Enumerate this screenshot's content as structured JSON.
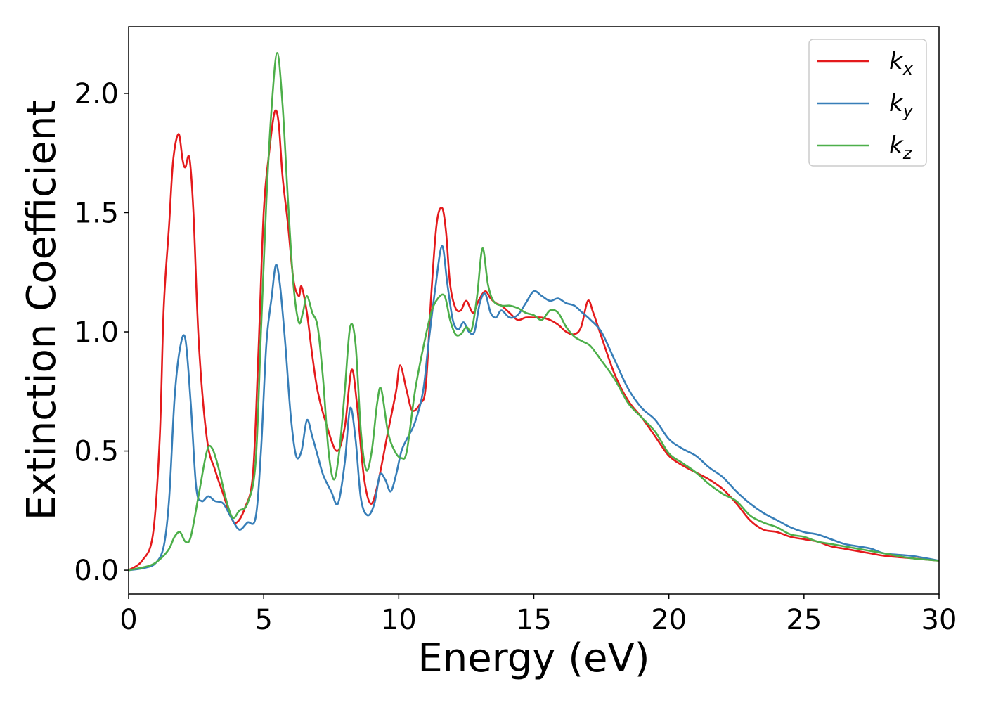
{
  "chart_data": {
    "type": "line",
    "title": "",
    "xlabel": "Energy (eV)",
    "ylabel": "Extinction Coefficient",
    "xlim": [
      0,
      30
    ],
    "ylim": [
      -0.1,
      2.28
    ],
    "xticks": [
      0,
      5,
      10,
      15,
      20,
      25,
      30
    ],
    "yticks": [
      0.0,
      0.5,
      1.0,
      1.5,
      2.0
    ],
    "xtick_labels": [
      "0",
      "5",
      "10",
      "15",
      "20",
      "25",
      "30"
    ],
    "ytick_labels": [
      "0.0",
      "0.5",
      "1.0",
      "1.5",
      "2.0"
    ],
    "grid": false,
    "legend_position": "top-right",
    "series": [
      {
        "name": "k_x",
        "legend_base": "k",
        "legend_sub": "x",
        "color": "#e41a1c",
        "points": [
          [
            0,
            0
          ],
          [
            0.5,
            0.04
          ],
          [
            0.9,
            0.15
          ],
          [
            1.15,
            0.55
          ],
          [
            1.3,
            1.1
          ],
          [
            1.5,
            1.45
          ],
          [
            1.65,
            1.72
          ],
          [
            1.85,
            1.83
          ],
          [
            2.0,
            1.72
          ],
          [
            2.1,
            1.69
          ],
          [
            2.25,
            1.73
          ],
          [
            2.4,
            1.5
          ],
          [
            2.6,
            0.95
          ],
          [
            2.9,
            0.55
          ],
          [
            3.2,
            0.42
          ],
          [
            3.5,
            0.32
          ],
          [
            3.8,
            0.22
          ],
          [
            4.0,
            0.2
          ],
          [
            4.3,
            0.26
          ],
          [
            4.6,
            0.4
          ],
          [
            4.8,
            0.9
          ],
          [
            5.0,
            1.5
          ],
          [
            5.2,
            1.75
          ],
          [
            5.4,
            1.92
          ],
          [
            5.55,
            1.88
          ],
          [
            5.7,
            1.65
          ],
          [
            5.9,
            1.45
          ],
          [
            6.1,
            1.22
          ],
          [
            6.3,
            1.15
          ],
          [
            6.4,
            1.19
          ],
          [
            6.6,
            1.08
          ],
          [
            6.8,
            0.9
          ],
          [
            7.0,
            0.75
          ],
          [
            7.3,
            0.62
          ],
          [
            7.7,
            0.5
          ],
          [
            8.0,
            0.6
          ],
          [
            8.25,
            0.84
          ],
          [
            8.45,
            0.7
          ],
          [
            8.7,
            0.4
          ],
          [
            8.95,
            0.28
          ],
          [
            9.2,
            0.35
          ],
          [
            9.6,
            0.58
          ],
          [
            9.9,
            0.75
          ],
          [
            10.05,
            0.86
          ],
          [
            10.3,
            0.75
          ],
          [
            10.5,
            0.67
          ],
          [
            10.8,
            0.7
          ],
          [
            11.0,
            0.77
          ],
          [
            11.2,
            1.15
          ],
          [
            11.4,
            1.45
          ],
          [
            11.6,
            1.52
          ],
          [
            11.75,
            1.42
          ],
          [
            11.9,
            1.2
          ],
          [
            12.1,
            1.1
          ],
          [
            12.3,
            1.09
          ],
          [
            12.5,
            1.13
          ],
          [
            12.75,
            1.08
          ],
          [
            12.95,
            1.13
          ],
          [
            13.2,
            1.17
          ],
          [
            13.4,
            1.14
          ],
          [
            13.6,
            1.12
          ],
          [
            13.8,
            1.11
          ],
          [
            14.1,
            1.08
          ],
          [
            14.4,
            1.05
          ],
          [
            14.7,
            1.06
          ],
          [
            15.0,
            1.06
          ],
          [
            15.3,
            1.06
          ],
          [
            15.6,
            1.05
          ],
          [
            15.9,
            1.03
          ],
          [
            16.2,
            1.0
          ],
          [
            16.5,
            0.99
          ],
          [
            16.75,
            1.02
          ],
          [
            17.0,
            1.13
          ],
          [
            17.2,
            1.08
          ],
          [
            17.5,
            0.98
          ],
          [
            18.0,
            0.82
          ],
          [
            18.5,
            0.71
          ],
          [
            19.0,
            0.64
          ],
          [
            19.5,
            0.56
          ],
          [
            20.0,
            0.48
          ],
          [
            20.5,
            0.44
          ],
          [
            21.0,
            0.41
          ],
          [
            21.5,
            0.38
          ],
          [
            22.0,
            0.34
          ],
          [
            22.5,
            0.28
          ],
          [
            23.0,
            0.21
          ],
          [
            23.5,
            0.17
          ],
          [
            24.0,
            0.16
          ],
          [
            24.5,
            0.14
          ],
          [
            25.0,
            0.13
          ],
          [
            25.5,
            0.12
          ],
          [
            26.0,
            0.1
          ],
          [
            26.5,
            0.09
          ],
          [
            27.0,
            0.08
          ],
          [
            27.5,
            0.07
          ],
          [
            28.0,
            0.06
          ],
          [
            29.0,
            0.05
          ],
          [
            30.0,
            0.04
          ]
        ]
      },
      {
        "name": "k_y",
        "legend_base": "k",
        "legend_sub": "y",
        "color": "#377eb8",
        "points": [
          [
            0,
            0
          ],
          [
            0.6,
            0.01
          ],
          [
            1.0,
            0.03
          ],
          [
            1.3,
            0.1
          ],
          [
            1.5,
            0.3
          ],
          [
            1.7,
            0.72
          ],
          [
            1.9,
            0.93
          ],
          [
            2.1,
            0.97
          ],
          [
            2.3,
            0.7
          ],
          [
            2.5,
            0.35
          ],
          [
            2.7,
            0.29
          ],
          [
            2.95,
            0.31
          ],
          [
            3.2,
            0.29
          ],
          [
            3.5,
            0.28
          ],
          [
            3.8,
            0.22
          ],
          [
            4.1,
            0.17
          ],
          [
            4.4,
            0.2
          ],
          [
            4.7,
            0.22
          ],
          [
            4.9,
            0.5
          ],
          [
            5.1,
            0.95
          ],
          [
            5.3,
            1.15
          ],
          [
            5.45,
            1.28
          ],
          [
            5.6,
            1.2
          ],
          [
            5.8,
            0.95
          ],
          [
            6.0,
            0.65
          ],
          [
            6.2,
            0.48
          ],
          [
            6.4,
            0.5
          ],
          [
            6.6,
            0.63
          ],
          [
            6.8,
            0.56
          ],
          [
            7.0,
            0.48
          ],
          [
            7.2,
            0.4
          ],
          [
            7.5,
            0.33
          ],
          [
            7.75,
            0.28
          ],
          [
            8.0,
            0.45
          ],
          [
            8.2,
            0.68
          ],
          [
            8.4,
            0.55
          ],
          [
            8.6,
            0.3
          ],
          [
            8.85,
            0.23
          ],
          [
            9.1,
            0.28
          ],
          [
            9.3,
            0.4
          ],
          [
            9.5,
            0.38
          ],
          [
            9.7,
            0.33
          ],
          [
            9.9,
            0.4
          ],
          [
            10.1,
            0.5
          ],
          [
            10.3,
            0.55
          ],
          [
            10.6,
            0.62
          ],
          [
            10.9,
            0.75
          ],
          [
            11.1,
            0.95
          ],
          [
            11.35,
            1.18
          ],
          [
            11.6,
            1.36
          ],
          [
            11.8,
            1.2
          ],
          [
            12.0,
            1.05
          ],
          [
            12.2,
            1.01
          ],
          [
            12.4,
            1.04
          ],
          [
            12.6,
            1.0
          ],
          [
            12.8,
            1.0
          ],
          [
            13.0,
            1.12
          ],
          [
            13.2,
            1.16
          ],
          [
            13.4,
            1.08
          ],
          [
            13.6,
            1.06
          ],
          [
            13.8,
            1.09
          ],
          [
            14.1,
            1.06
          ],
          [
            14.4,
            1.07
          ],
          [
            14.7,
            1.12
          ],
          [
            15.0,
            1.17
          ],
          [
            15.3,
            1.15
          ],
          [
            15.6,
            1.13
          ],
          [
            15.9,
            1.14
          ],
          [
            16.2,
            1.12
          ],
          [
            16.5,
            1.11
          ],
          [
            16.8,
            1.08
          ],
          [
            17.1,
            1.05
          ],
          [
            17.5,
            1.0
          ],
          [
            18.0,
            0.88
          ],
          [
            18.5,
            0.76
          ],
          [
            19.0,
            0.68
          ],
          [
            19.5,
            0.63
          ],
          [
            20.0,
            0.55
          ],
          [
            20.5,
            0.51
          ],
          [
            21.0,
            0.48
          ],
          [
            21.5,
            0.43
          ],
          [
            22.0,
            0.39
          ],
          [
            22.5,
            0.33
          ],
          [
            23.0,
            0.28
          ],
          [
            23.5,
            0.24
          ],
          [
            24.0,
            0.21
          ],
          [
            24.5,
            0.18
          ],
          [
            25.0,
            0.16
          ],
          [
            25.5,
            0.15
          ],
          [
            26.0,
            0.13
          ],
          [
            26.5,
            0.11
          ],
          [
            27.0,
            0.1
          ],
          [
            27.5,
            0.09
          ],
          [
            28.0,
            0.07
          ],
          [
            29.0,
            0.06
          ],
          [
            30.0,
            0.04
          ]
        ]
      },
      {
        "name": "k_z",
        "legend_base": "k",
        "legend_sub": "z",
        "color": "#4daf4a",
        "points": [
          [
            0,
            0
          ],
          [
            0.8,
            0.02
          ],
          [
            1.2,
            0.05
          ],
          [
            1.5,
            0.09
          ],
          [
            1.7,
            0.14
          ],
          [
            1.9,
            0.16
          ],
          [
            2.1,
            0.12
          ],
          [
            2.3,
            0.14
          ],
          [
            2.6,
            0.32
          ],
          [
            2.9,
            0.5
          ],
          [
            3.1,
            0.51
          ],
          [
            3.35,
            0.42
          ],
          [
            3.6,
            0.3
          ],
          [
            3.85,
            0.22
          ],
          [
            4.1,
            0.25
          ],
          [
            4.4,
            0.28
          ],
          [
            4.7,
            0.45
          ],
          [
            4.9,
            1.0
          ],
          [
            5.1,
            1.55
          ],
          [
            5.3,
            1.95
          ],
          [
            5.5,
            2.17
          ],
          [
            5.7,
            1.95
          ],
          [
            5.9,
            1.55
          ],
          [
            6.1,
            1.2
          ],
          [
            6.3,
            1.04
          ],
          [
            6.45,
            1.08
          ],
          [
            6.6,
            1.15
          ],
          [
            6.8,
            1.08
          ],
          [
            7.0,
            1.02
          ],
          [
            7.2,
            0.8
          ],
          [
            7.4,
            0.5
          ],
          [
            7.6,
            0.38
          ],
          [
            7.8,
            0.5
          ],
          [
            8.0,
            0.75
          ],
          [
            8.2,
            1.02
          ],
          [
            8.4,
            0.95
          ],
          [
            8.6,
            0.58
          ],
          [
            8.8,
            0.42
          ],
          [
            9.0,
            0.5
          ],
          [
            9.2,
            0.7
          ],
          [
            9.35,
            0.76
          ],
          [
            9.6,
            0.58
          ],
          [
            9.85,
            0.5
          ],
          [
            10.1,
            0.47
          ],
          [
            10.3,
            0.5
          ],
          [
            10.6,
            0.75
          ],
          [
            10.9,
            0.93
          ],
          [
            11.2,
            1.08
          ],
          [
            11.45,
            1.14
          ],
          [
            11.7,
            1.15
          ],
          [
            11.9,
            1.05
          ],
          [
            12.1,
            0.99
          ],
          [
            12.3,
            0.99
          ],
          [
            12.5,
            1.02
          ],
          [
            12.7,
            1.01
          ],
          [
            12.9,
            1.15
          ],
          [
            13.1,
            1.35
          ],
          [
            13.3,
            1.2
          ],
          [
            13.5,
            1.13
          ],
          [
            13.8,
            1.11
          ],
          [
            14.1,
            1.11
          ],
          [
            14.4,
            1.1
          ],
          [
            14.7,
            1.08
          ],
          [
            15.0,
            1.07
          ],
          [
            15.3,
            1.05
          ],
          [
            15.6,
            1.09
          ],
          [
            15.9,
            1.08
          ],
          [
            16.2,
            1.02
          ],
          [
            16.5,
            0.98
          ],
          [
            16.8,
            0.96
          ],
          [
            17.1,
            0.94
          ],
          [
            17.5,
            0.88
          ],
          [
            18.0,
            0.8
          ],
          [
            18.5,
            0.7
          ],
          [
            19.0,
            0.64
          ],
          [
            19.5,
            0.58
          ],
          [
            20.0,
            0.49
          ],
          [
            20.5,
            0.45
          ],
          [
            21.0,
            0.41
          ],
          [
            21.5,
            0.36
          ],
          [
            22.0,
            0.32
          ],
          [
            22.5,
            0.29
          ],
          [
            23.0,
            0.23
          ],
          [
            23.5,
            0.2
          ],
          [
            24.0,
            0.18
          ],
          [
            24.5,
            0.15
          ],
          [
            25.0,
            0.14
          ],
          [
            25.5,
            0.12
          ],
          [
            26.0,
            0.11
          ],
          [
            26.5,
            0.1
          ],
          [
            27.0,
            0.09
          ],
          [
            27.5,
            0.08
          ],
          [
            28.0,
            0.07
          ],
          [
            29.0,
            0.05
          ],
          [
            30.0,
            0.04
          ]
        ]
      }
    ]
  }
}
